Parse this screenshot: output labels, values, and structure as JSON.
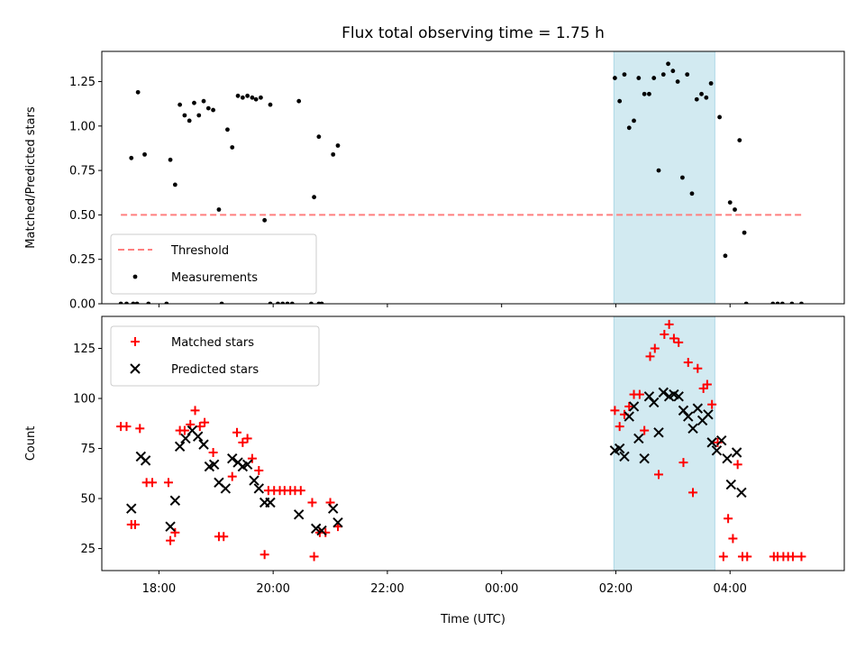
{
  "chart_data": [
    {
      "type": "scatter",
      "title": "Flux total observing time = 1.75 h",
      "xlabel": "",
      "ylabel": "Matched/Predicted stars",
      "xlim": [
        "17:00",
        "06:00"
      ],
      "ylim": [
        0,
        1.42
      ],
      "yticks": [
        "0.00",
        "0.25",
        "0.50",
        "0.75",
        "1.00",
        "1.25"
      ],
      "grid": false,
      "legend": "lower-left",
      "shaded_span": {
        "from": "01:58",
        "to": "03:44",
        "color": "#add8e6"
      },
      "threshold": {
        "label": "Threshold",
        "value": 0.5,
        "from": "17:20",
        "to": "05:15",
        "color": "#ff7f7f",
        "style": "dashed"
      },
      "series": [
        {
          "name": "Measurements",
          "marker": "dot",
          "color": "#000000",
          "points": [
            {
              "x": "17:20",
              "y": 0
            },
            {
              "x": "17:26",
              "y": 0
            },
            {
              "x": "17:33",
              "y": 0
            },
            {
              "x": "17:37",
              "y": 0
            },
            {
              "x": "17:49",
              "y": 0
            },
            {
              "x": "18:08",
              "y": 0
            },
            {
              "x": "19:06",
              "y": 0
            },
            {
              "x": "19:57",
              "y": 0
            },
            {
              "x": "20:05",
              "y": 0
            },
            {
              "x": "20:10",
              "y": 0
            },
            {
              "x": "20:15",
              "y": 0
            },
            {
              "x": "20:20",
              "y": 0
            },
            {
              "x": "20:40",
              "y": 0
            },
            {
              "x": "20:48",
              "y": 0
            },
            {
              "x": "20:51",
              "y": 0
            },
            {
              "x": "04:17",
              "y": 0
            },
            {
              "x": "04:45",
              "y": 0
            },
            {
              "x": "04:50",
              "y": 0
            },
            {
              "x": "04:55",
              "y": 0
            },
            {
              "x": "05:05",
              "y": 0
            },
            {
              "x": "05:15",
              "y": 0
            },
            {
              "x": "17:31",
              "y": 0.82
            },
            {
              "x": "17:38",
              "y": 1.19
            },
            {
              "x": "17:45",
              "y": 0.84
            },
            {
              "x": "18:12",
              "y": 0.81
            },
            {
              "x": "18:17",
              "y": 0.67
            },
            {
              "x": "18:22",
              "y": 1.12
            },
            {
              "x": "18:27",
              "y": 1.06
            },
            {
              "x": "18:32",
              "y": 1.03
            },
            {
              "x": "18:37",
              "y": 1.13
            },
            {
              "x": "18:42",
              "y": 1.06
            },
            {
              "x": "18:47",
              "y": 1.14
            },
            {
              "x": "18:52",
              "y": 1.1
            },
            {
              "x": "18:57",
              "y": 1.09
            },
            {
              "x": "19:03",
              "y": 0.53
            },
            {
              "x": "19:12",
              "y": 0.98
            },
            {
              "x": "19:17",
              "y": 0.88
            },
            {
              "x": "19:23",
              "y": 1.17
            },
            {
              "x": "19:28",
              "y": 1.16
            },
            {
              "x": "19:33",
              "y": 1.17
            },
            {
              "x": "19:38",
              "y": 1.16
            },
            {
              "x": "19:42",
              "y": 1.15
            },
            {
              "x": "19:47",
              "y": 1.16
            },
            {
              "x": "19:51",
              "y": 0.47
            },
            {
              "x": "19:57",
              "y": 1.12
            },
            {
              "x": "20:27",
              "y": 1.14
            },
            {
              "x": "20:43",
              "y": 0.6
            },
            {
              "x": "20:48",
              "y": 0.94
            },
            {
              "x": "21:03",
              "y": 0.84
            },
            {
              "x": "21:08",
              "y": 0.89
            },
            {
              "x": "01:59",
              "y": 1.27
            },
            {
              "x": "02:04",
              "y": 1.14
            },
            {
              "x": "02:09",
              "y": 1.29
            },
            {
              "x": "02:14",
              "y": 0.99
            },
            {
              "x": "02:19",
              "y": 1.03
            },
            {
              "x": "02:24",
              "y": 1.27
            },
            {
              "x": "02:30",
              "y": 1.18
            },
            {
              "x": "02:35",
              "y": 1.18
            },
            {
              "x": "02:40",
              "y": 1.27
            },
            {
              "x": "02:45",
              "y": 0.75
            },
            {
              "x": "02:50",
              "y": 1.29
            },
            {
              "x": "02:55",
              "y": 1.35
            },
            {
              "x": "03:00",
              "y": 1.31
            },
            {
              "x": "03:05",
              "y": 1.25
            },
            {
              "x": "03:10",
              "y": 0.71
            },
            {
              "x": "03:15",
              "y": 1.29
            },
            {
              "x": "03:20",
              "y": 0.62
            },
            {
              "x": "03:25",
              "y": 1.15
            },
            {
              "x": "03:30",
              "y": 1.18
            },
            {
              "x": "03:35",
              "y": 1.16
            },
            {
              "x": "03:40",
              "y": 1.24
            },
            {
              "x": "03:49",
              "y": 1.05
            },
            {
              "x": "03:55",
              "y": 0.27
            },
            {
              "x": "04:00",
              "y": 0.57
            },
            {
              "x": "04:05",
              "y": 0.53
            },
            {
              "x": "04:10",
              "y": 0.92
            },
            {
              "x": "04:15",
              "y": 0.4
            }
          ]
        }
      ]
    },
    {
      "type": "scatter",
      "title": "",
      "xlabel": "Time (UTC)",
      "ylabel": "Count",
      "xlim": [
        "17:00",
        "06:00"
      ],
      "xticks": [
        "18:00",
        "20:00",
        "22:00",
        "00:00",
        "02:00",
        "04:00"
      ],
      "ylim": [
        14,
        141
      ],
      "yticks": [
        "25",
        "50",
        "75",
        "100",
        "125"
      ],
      "grid": false,
      "legend": "top-left",
      "shaded_span": {
        "from": "01:58",
        "to": "03:44",
        "color": "#add8e6"
      },
      "series": [
        {
          "name": "Matched stars",
          "marker": "plus",
          "color": "#ff0000",
          "points": [
            {
              "x": "17:20",
              "y": 86
            },
            {
              "x": "17:26",
              "y": 86
            },
            {
              "x": "17:31",
              "y": 37
            },
            {
              "x": "17:35",
              "y": 37
            },
            {
              "x": "17:40",
              "y": 85
            },
            {
              "x": "17:47",
              "y": 58
            },
            {
              "x": "17:53",
              "y": 58
            },
            {
              "x": "18:10",
              "y": 58
            },
            {
              "x": "18:12",
              "y": 29
            },
            {
              "x": "18:17",
              "y": 33
            },
            {
              "x": "18:22",
              "y": 84
            },
            {
              "x": "18:27",
              "y": 84
            },
            {
              "x": "18:33",
              "y": 87
            },
            {
              "x": "18:38",
              "y": 94
            },
            {
              "x": "18:43",
              "y": 86
            },
            {
              "x": "18:48",
              "y": 88
            },
            {
              "x": "18:57",
              "y": 73
            },
            {
              "x": "19:03",
              "y": 31
            },
            {
              "x": "19:08",
              "y": 31
            },
            {
              "x": "19:17",
              "y": 61
            },
            {
              "x": "19:22",
              "y": 83
            },
            {
              "x": "19:28",
              "y": 78
            },
            {
              "x": "19:33",
              "y": 80
            },
            {
              "x": "19:38",
              "y": 70
            },
            {
              "x": "19:45",
              "y": 64
            },
            {
              "x": "19:51",
              "y": 22
            },
            {
              "x": "19:55",
              "y": 54
            },
            {
              "x": "20:01",
              "y": 54
            },
            {
              "x": "20:07",
              "y": 54
            },
            {
              "x": "20:12",
              "y": 54
            },
            {
              "x": "20:18",
              "y": 54
            },
            {
              "x": "20:23",
              "y": 54
            },
            {
              "x": "20:29",
              "y": 54
            },
            {
              "x": "20:41",
              "y": 48
            },
            {
              "x": "20:43",
              "y": 21
            },
            {
              "x": "20:49",
              "y": 33
            },
            {
              "x": "20:55",
              "y": 33
            },
            {
              "x": "21:00",
              "y": 48
            },
            {
              "x": "21:08",
              "y": 36
            },
            {
              "x": "01:59",
              "y": 94
            },
            {
              "x": "02:04",
              "y": 86
            },
            {
              "x": "02:09",
              "y": 92
            },
            {
              "x": "02:14",
              "y": 96
            },
            {
              "x": "02:19",
              "y": 102
            },
            {
              "x": "02:25",
              "y": 102
            },
            {
              "x": "02:30",
              "y": 84
            },
            {
              "x": "02:36",
              "y": 121
            },
            {
              "x": "02:41",
              "y": 125
            },
            {
              "x": "02:45",
              "y": 62
            },
            {
              "x": "02:51",
              "y": 132
            },
            {
              "x": "02:56",
              "y": 137
            },
            {
              "x": "03:01",
              "y": 130
            },
            {
              "x": "03:06",
              "y": 128
            },
            {
              "x": "03:11",
              "y": 68
            },
            {
              "x": "03:16",
              "y": 118
            },
            {
              "x": "03:21",
              "y": 53
            },
            {
              "x": "03:26",
              "y": 115
            },
            {
              "x": "03:32",
              "y": 105
            },
            {
              "x": "03:36",
              "y": 107
            },
            {
              "x": "03:41",
              "y": 97
            },
            {
              "x": "03:47",
              "y": 78
            },
            {
              "x": "03:53",
              "y": 21
            },
            {
              "x": "03:58",
              "y": 40
            },
            {
              "x": "04:03",
              "y": 30
            },
            {
              "x": "04:08",
              "y": 67
            },
            {
              "x": "04:13",
              "y": 21
            },
            {
              "x": "04:18",
              "y": 21
            },
            {
              "x": "04:46",
              "y": 21
            },
            {
              "x": "04:50",
              "y": 21
            },
            {
              "x": "04:56",
              "y": 21
            },
            {
              "x": "05:01",
              "y": 21
            },
            {
              "x": "05:06",
              "y": 21
            },
            {
              "x": "05:15",
              "y": 21
            }
          ]
        },
        {
          "name": "Predicted stars",
          "marker": "x",
          "color": "#000000",
          "points": [
            {
              "x": "17:31",
              "y": 45
            },
            {
              "x": "17:41",
              "y": 71
            },
            {
              "x": "17:46",
              "y": 69
            },
            {
              "x": "18:12",
              "y": 36
            },
            {
              "x": "18:17",
              "y": 49
            },
            {
              "x": "18:22",
              "y": 76
            },
            {
              "x": "18:28",
              "y": 80
            },
            {
              "x": "18:35",
              "y": 84
            },
            {
              "x": "18:41",
              "y": 81
            },
            {
              "x": "18:47",
              "y": 77
            },
            {
              "x": "18:53",
              "y": 66
            },
            {
              "x": "18:58",
              "y": 67
            },
            {
              "x": "19:03",
              "y": 58
            },
            {
              "x": "19:10",
              "y": 55
            },
            {
              "x": "19:17",
              "y": 70
            },
            {
              "x": "19:23",
              "y": 68
            },
            {
              "x": "19:28",
              "y": 66
            },
            {
              "x": "19:33",
              "y": 67
            },
            {
              "x": "19:40",
              "y": 59
            },
            {
              "x": "19:45",
              "y": 55
            },
            {
              "x": "19:51",
              "y": 48
            },
            {
              "x": "19:57",
              "y": 48
            },
            {
              "x": "20:27",
              "y": 42
            },
            {
              "x": "20:45",
              "y": 35
            },
            {
              "x": "20:51",
              "y": 34
            },
            {
              "x": "21:03",
              "y": 45
            },
            {
              "x": "21:08",
              "y": 38
            },
            {
              "x": "01:59",
              "y": 74
            },
            {
              "x": "02:04",
              "y": 75
            },
            {
              "x": "02:09",
              "y": 71
            },
            {
              "x": "02:14",
              "y": 91
            },
            {
              "x": "02:19",
              "y": 96
            },
            {
              "x": "02:24",
              "y": 80
            },
            {
              "x": "02:30",
              "y": 70
            },
            {
              "x": "02:35",
              "y": 101
            },
            {
              "x": "02:40",
              "y": 98
            },
            {
              "x": "02:45",
              "y": 83
            },
            {
              "x": "02:50",
              "y": 103
            },
            {
              "x": "02:56",
              "y": 101
            },
            {
              "x": "03:01",
              "y": 102
            },
            {
              "x": "03:06",
              "y": 101
            },
            {
              "x": "03:11",
              "y": 94
            },
            {
              "x": "03:16",
              "y": 91
            },
            {
              "x": "03:21",
              "y": 85
            },
            {
              "x": "03:26",
              "y": 95
            },
            {
              "x": "03:31",
              "y": 89
            },
            {
              "x": "03:37",
              "y": 92
            },
            {
              "x": "03:41",
              "y": 78
            },
            {
              "x": "03:46",
              "y": 74
            },
            {
              "x": "03:51",
              "y": 79
            },
            {
              "x": "03:57",
              "y": 70
            },
            {
              "x": "04:01",
              "y": 57
            },
            {
              "x": "04:07",
              "y": 73
            },
            {
              "x": "04:12",
              "y": 53
            }
          ]
        }
      ]
    }
  ]
}
